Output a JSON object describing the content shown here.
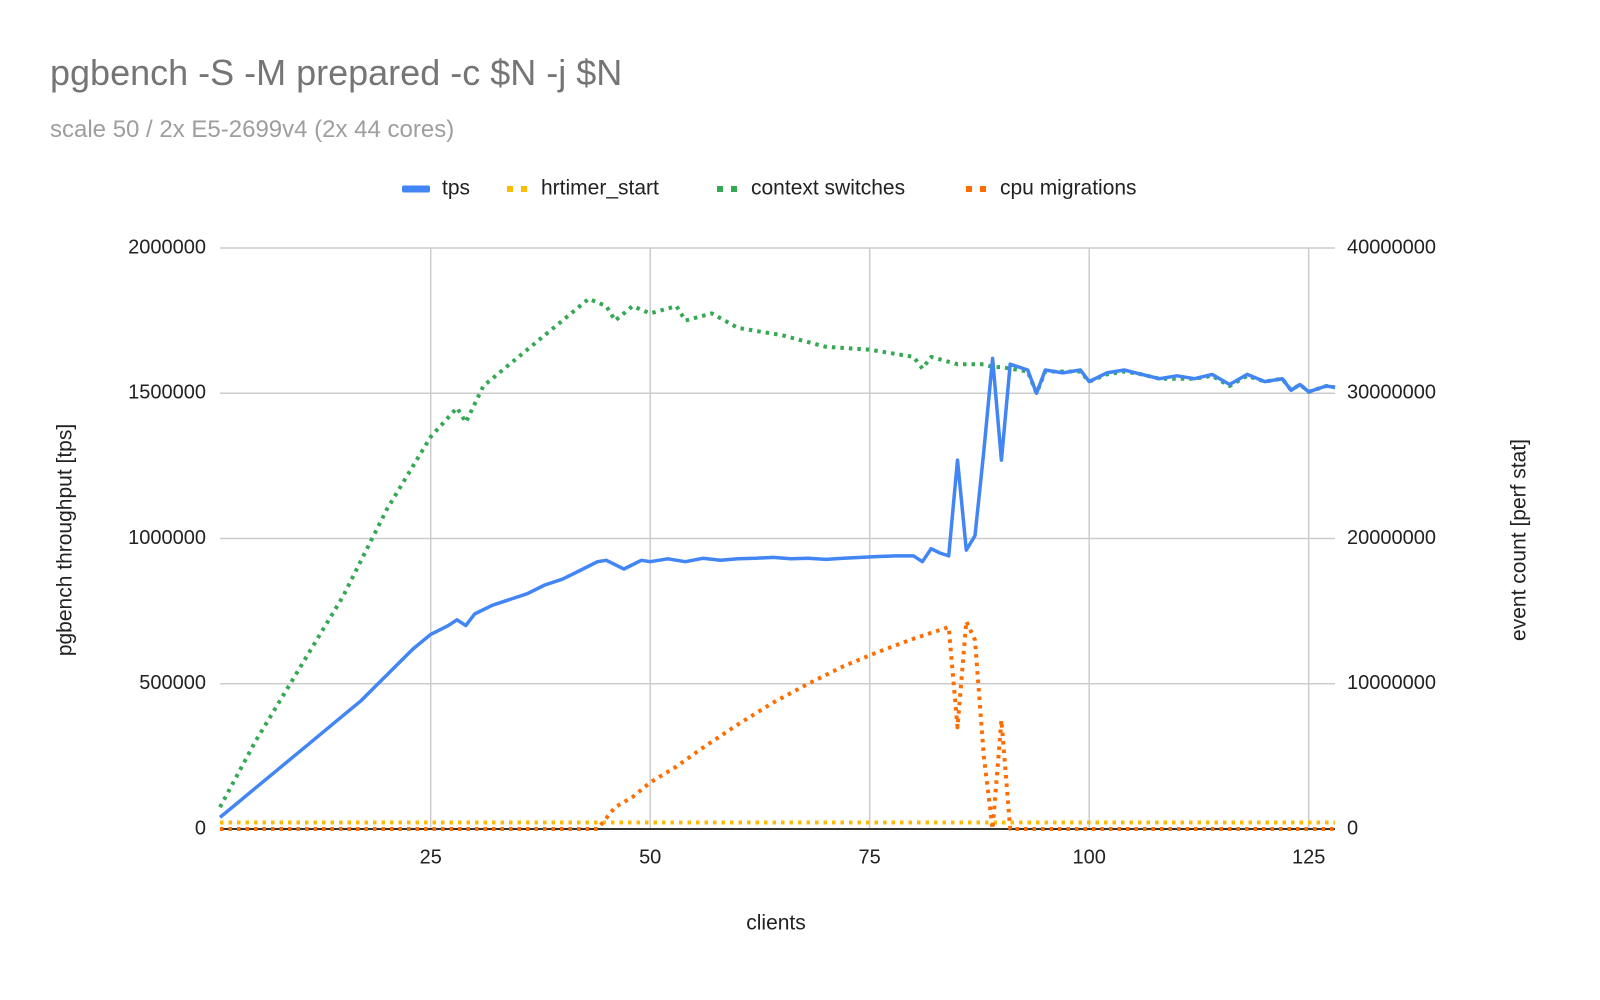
{
  "chart_data": {
    "type": "line",
    "title": "pgbench -S -M prepared -c $N -j $N",
    "subtitle": "scale 50 / 2x E5-2699v4 (2x 44 cores)",
    "xlabel": "clients",
    "ylabel_left": "pgbench throughput [tps]",
    "ylabel_right": "event count [perf stat]",
    "xlim": [
      1,
      128
    ],
    "ylim_left": [
      0,
      2000000
    ],
    "ylim_right": [
      0,
      40000000
    ],
    "x_ticks": [
      "25",
      "50",
      "75",
      "100",
      "125"
    ],
    "y_ticks_left": [
      "0",
      "500000",
      "1000000",
      "1500000",
      "2000000"
    ],
    "y_ticks_right": [
      "0",
      "10000000",
      "20000000",
      "30000000",
      "40000000"
    ],
    "grid": true,
    "legend_position": "top",
    "series": [
      {
        "name": "tps",
        "axis": "left",
        "style": "solid",
        "color": "#4285f4",
        "points": [
          [
            1,
            40000
          ],
          [
            3,
            90000
          ],
          [
            5,
            140000
          ],
          [
            7,
            190000
          ],
          [
            9,
            240000
          ],
          [
            11,
            290000
          ],
          [
            13,
            340000
          ],
          [
            15,
            390000
          ],
          [
            17,
            440000
          ],
          [
            19,
            500000
          ],
          [
            21,
            560000
          ],
          [
            23,
            620000
          ],
          [
            25,
            670000
          ],
          [
            27,
            700000
          ],
          [
            28,
            720000
          ],
          [
            29,
            700000
          ],
          [
            30,
            740000
          ],
          [
            32,
            770000
          ],
          [
            34,
            790000
          ],
          [
            36,
            810000
          ],
          [
            38,
            840000
          ],
          [
            40,
            860000
          ],
          [
            42,
            890000
          ],
          [
            44,
            920000
          ],
          [
            45,
            925000
          ],
          [
            47,
            895000
          ],
          [
            49,
            925000
          ],
          [
            50,
            920000
          ],
          [
            52,
            930000
          ],
          [
            54,
            920000
          ],
          [
            56,
            932000
          ],
          [
            58,
            925000
          ],
          [
            60,
            930000
          ],
          [
            62,
            932000
          ],
          [
            64,
            935000
          ],
          [
            66,
            930000
          ],
          [
            68,
            932000
          ],
          [
            70,
            928000
          ],
          [
            72,
            932000
          ],
          [
            74,
            935000
          ],
          [
            76,
            938000
          ],
          [
            78,
            940000
          ],
          [
            80,
            940000
          ],
          [
            81,
            920000
          ],
          [
            82,
            965000
          ],
          [
            83,
            950000
          ],
          [
            84,
            940000
          ],
          [
            85,
            1270000
          ],
          [
            86,
            960000
          ],
          [
            87,
            1010000
          ],
          [
            88,
            1300000
          ],
          [
            89,
            1620000
          ],
          [
            90,
            1270000
          ],
          [
            91,
            1600000
          ],
          [
            93,
            1580000
          ],
          [
            94,
            1500000
          ],
          [
            95,
            1580000
          ],
          [
            97,
            1570000
          ],
          [
            99,
            1580000
          ],
          [
            100,
            1540000
          ],
          [
            102,
            1570000
          ],
          [
            104,
            1580000
          ],
          [
            106,
            1565000
          ],
          [
            108,
            1550000
          ],
          [
            110,
            1560000
          ],
          [
            112,
            1550000
          ],
          [
            114,
            1565000
          ],
          [
            116,
            1530000
          ],
          [
            118,
            1565000
          ],
          [
            120,
            1540000
          ],
          [
            122,
            1550000
          ],
          [
            123,
            1510000
          ],
          [
            124,
            1530000
          ],
          [
            125,
            1505000
          ],
          [
            127,
            1525000
          ],
          [
            128,
            1520000
          ]
        ]
      },
      {
        "name": "hrtimer_start",
        "axis": "right",
        "style": "dotted",
        "color": "#fbbc04",
        "points": [
          [
            1,
            450000
          ],
          [
            128,
            450000
          ]
        ]
      },
      {
        "name": "context switches",
        "axis": "right",
        "style": "dotted",
        "color": "#34a853",
        "points": [
          [
            1,
            1500000
          ],
          [
            5,
            6000000
          ],
          [
            10,
            11000000
          ],
          [
            15,
            16000000
          ],
          [
            20,
            22000000
          ],
          [
            25,
            27000000
          ],
          [
            28,
            29000000
          ],
          [
            29,
            28000000
          ],
          [
            31,
            30500000
          ],
          [
            35,
            32500000
          ],
          [
            40,
            35000000
          ],
          [
            43,
            36500000
          ],
          [
            45,
            36000000
          ],
          [
            46,
            35000000
          ],
          [
            48,
            36000000
          ],
          [
            50,
            35500000
          ],
          [
            53,
            36000000
          ],
          [
            54,
            35000000
          ],
          [
            57,
            35500000
          ],
          [
            60,
            34500000
          ],
          [
            65,
            34000000
          ],
          [
            70,
            33200000
          ],
          [
            75,
            33000000
          ],
          [
            80,
            32500000
          ],
          [
            81,
            31700000
          ],
          [
            82,
            32500000
          ],
          [
            85,
            32000000
          ],
          [
            88,
            32000000
          ],
          [
            89,
            31800000
          ],
          [
            90,
            31800000
          ],
          [
            91,
            31700000
          ],
          [
            93,
            31500000
          ],
          [
            94,
            30000000
          ],
          [
            95,
            31500000
          ],
          [
            97,
            31500000
          ],
          [
            99,
            31500000
          ],
          [
            100,
            30800000
          ],
          [
            102,
            31300000
          ],
          [
            104,
            31500000
          ],
          [
            106,
            31300000
          ],
          [
            108,
            31000000
          ],
          [
            110,
            31000000
          ],
          [
            112,
            31000000
          ],
          [
            114,
            31200000
          ],
          [
            116,
            30500000
          ],
          [
            118,
            31200000
          ],
          [
            120,
            30800000
          ],
          [
            122,
            31000000
          ],
          [
            123,
            30200000
          ],
          [
            124,
            30600000
          ],
          [
            125,
            30100000
          ],
          [
            127,
            30500000
          ],
          [
            128,
            30400000
          ]
        ]
      },
      {
        "name": "cpu migrations",
        "axis": "right",
        "style": "dotted",
        "color": "#ff6d01",
        "points": [
          [
            1,
            0
          ],
          [
            44,
            0
          ],
          [
            46,
            1500000
          ],
          [
            48,
            2200000
          ],
          [
            50,
            3200000
          ],
          [
            53,
            4300000
          ],
          [
            56,
            5600000
          ],
          [
            60,
            7200000
          ],
          [
            64,
            8700000
          ],
          [
            68,
            10000000
          ],
          [
            72,
            11200000
          ],
          [
            76,
            12200000
          ],
          [
            80,
            13100000
          ],
          [
            82,
            13500000
          ],
          [
            84,
            13900000
          ],
          [
            85,
            7000000
          ],
          [
            86,
            14300000
          ],
          [
            87,
            13000000
          ],
          [
            88,
            5000000
          ],
          [
            89,
            0
          ],
          [
            90,
            7500000
          ],
          [
            91,
            0
          ],
          [
            128,
            0
          ]
        ]
      }
    ]
  }
}
